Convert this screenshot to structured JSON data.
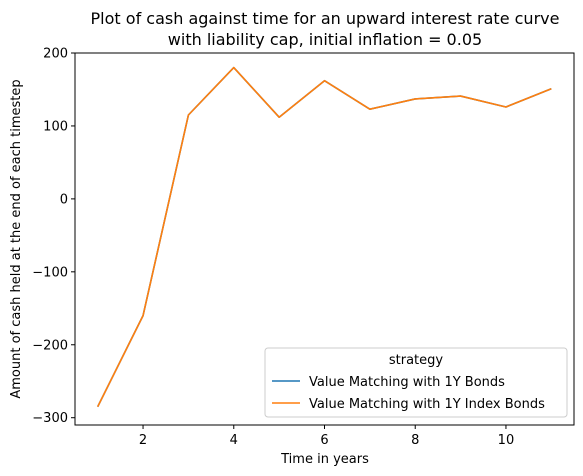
{
  "chart_data": {
    "type": "line",
    "title_line1": "Plot of cash against time for an upward interest rate curve",
    "title_line2": "with liability cap, initial inflation = 0.05",
    "xlabel": "Time in years",
    "ylabel": "Amount of cash held at the end of each timestep",
    "xlim": [
      0.5,
      11.5
    ],
    "ylim": [
      -310,
      200
    ],
    "xticks": [
      2,
      4,
      6,
      8,
      10
    ],
    "yticks": [
      -300,
      -200,
      -100,
      0,
      100,
      200
    ],
    "x": [
      1,
      2,
      3,
      4,
      5,
      6,
      7,
      8,
      9,
      10,
      11
    ],
    "series": [
      {
        "name": "Value Matching with 1Y Bonds",
        "color": "#1f77b4",
        "values": [
          -285,
          -160,
          115,
          180,
          112,
          162,
          123,
          137,
          141,
          126,
          151
        ]
      },
      {
        "name": "Value Matching with 1Y Index Bonds",
        "color": "#ff7f0e",
        "values": [
          -285,
          -160,
          115,
          180,
          112,
          162,
          123,
          137,
          141,
          126,
          151
        ]
      }
    ],
    "legend": {
      "title": "strategy",
      "position": "lower-right"
    },
    "grid": false
  }
}
